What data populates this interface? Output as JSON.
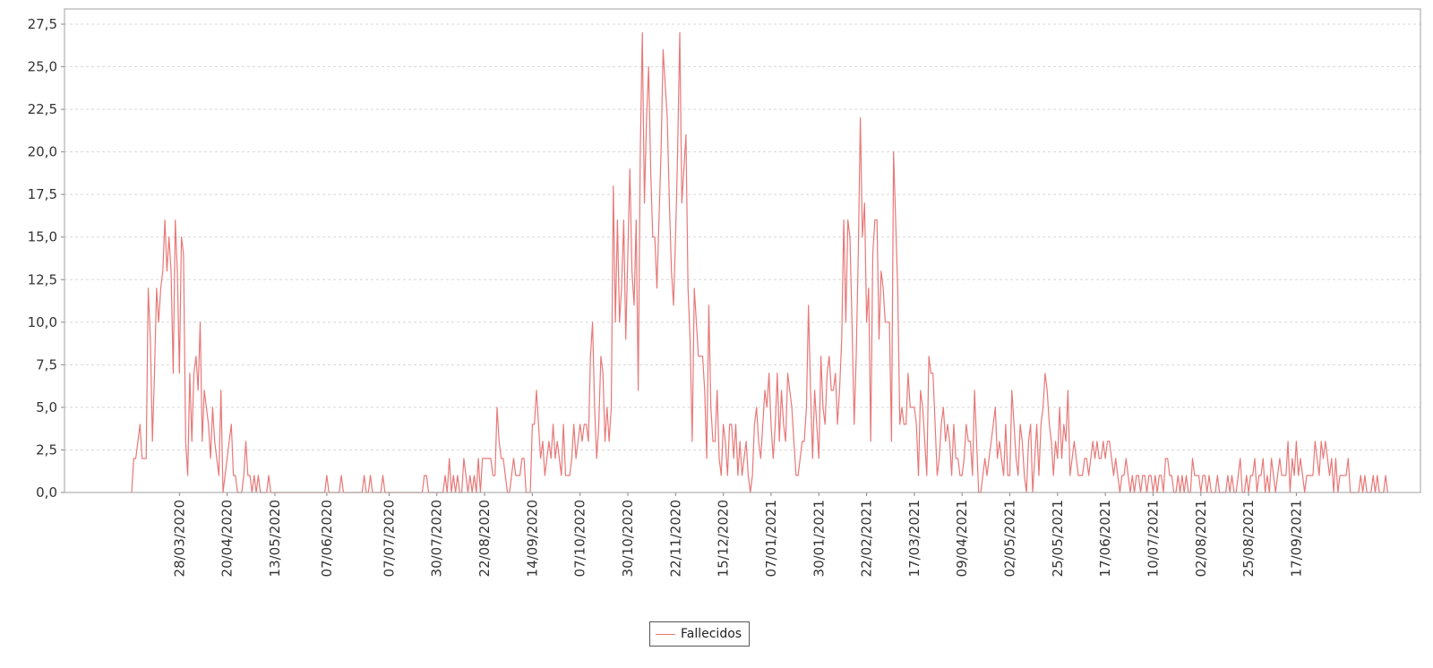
{
  "chart_data": {
    "type": "line",
    "title": "",
    "xlabel": "",
    "ylabel": "",
    "ylim": [
      0,
      27.5
    ],
    "yticks": [
      "0,0",
      "2,5",
      "5,0",
      "7,5",
      "10,0",
      "12,5",
      "15,0",
      "17,5",
      "20,0",
      "22,5",
      "25,0",
      "27,5"
    ],
    "ytick_values": [
      0,
      2.5,
      5,
      7.5,
      10,
      12.5,
      15,
      17.5,
      20,
      22.5,
      25,
      27.5
    ],
    "xtick_labels": [
      "28/03/2020",
      "20/04/2020",
      "13/05/2020",
      "07/06/2020",
      "07/07/2020",
      "30/07/2020",
      "22/08/2020",
      "14/09/2020",
      "07/10/2020",
      "30/10/2020",
      "22/11/2020",
      "15/12/2020",
      "07/01/2021",
      "30/01/2021",
      "22/02/2021",
      "17/03/2021",
      "09/04/2021",
      "02/05/2021",
      "25/05/2021",
      "17/06/2021",
      "10/07/2021",
      "02/08/2021",
      "25/08/2021",
      "17/09/2021"
    ],
    "xtick_days": [
      23,
      46,
      69,
      94,
      124,
      147,
      170,
      193,
      216,
      239,
      262,
      285,
      308,
      331,
      354,
      377,
      400,
      423,
      446,
      469,
      492,
      515,
      538,
      561
    ],
    "grid": {
      "horizontal": true,
      "vertical": false,
      "style": "dashed"
    },
    "legend": {
      "position": "bottom-center",
      "entries": [
        "Fallecidos"
      ]
    },
    "start_date": "05/03/2020",
    "series": [
      {
        "name": "Fallecidos",
        "color": "#e87878",
        "values": [
          0,
          2,
          2,
          3,
          4,
          2,
          2,
          2,
          12,
          9,
          3,
          7,
          12,
          10,
          12,
          13,
          16,
          13,
          15,
          13,
          7,
          16,
          13,
          7,
          15,
          14,
          3,
          1,
          7,
          3,
          7,
          8,
          6,
          10,
          3,
          6,
          5,
          4,
          2,
          5,
          3,
          2,
          1,
          6,
          0,
          1,
          2,
          3,
          4,
          1,
          1,
          0,
          0,
          0,
          1,
          3,
          1,
          1,
          0,
          1,
          0,
          1,
          0,
          0,
          0,
          0,
          1,
          0,
          0,
          0,
          0,
          0,
          0,
          0,
          0,
          0,
          0,
          0,
          0,
          0,
          0,
          0,
          0,
          0,
          0,
          0,
          0,
          0,
          0,
          0,
          0,
          0,
          0,
          0,
          1,
          0,
          0,
          0,
          0,
          0,
          0,
          1,
          0,
          0,
          0,
          0,
          0,
          0,
          0,
          0,
          0,
          0,
          1,
          0,
          0,
          1,
          0,
          0,
          0,
          0,
          0,
          1,
          0,
          0,
          0,
          0,
          0,
          0,
          0,
          0,
          0,
          0,
          0,
          0,
          0,
          0,
          0,
          0,
          0,
          0,
          0,
          1,
          1,
          0,
          0,
          0,
          0,
          0,
          0,
          0,
          0,
          1,
          0,
          2,
          0,
          1,
          0,
          1,
          0,
          0,
          2,
          1,
          0,
          1,
          0,
          1,
          0,
          2,
          0,
          2,
          2,
          2,
          2,
          2,
          1,
          1,
          5,
          3,
          2,
          2,
          1,
          0,
          0,
          1,
          2,
          1,
          1,
          1,
          2,
          2,
          0,
          0,
          0,
          4,
          4,
          6,
          4,
          2,
          3,
          1,
          2,
          3,
          2,
          4,
          2,
          3,
          2,
          1,
          4,
          1,
          1,
          1,
          2,
          4,
          2,
          3,
          4,
          3,
          4,
          4,
          3,
          8,
          10,
          5,
          2,
          4,
          8,
          7,
          3,
          5,
          3,
          5,
          18,
          10,
          16,
          10,
          12,
          16,
          9,
          14,
          19,
          13,
          11,
          16,
          6,
          20,
          27,
          17,
          22,
          25,
          19,
          15,
          15,
          12,
          16,
          20,
          26,
          24,
          22,
          17,
          13,
          11,
          15,
          20,
          27,
          17,
          19,
          21,
          12,
          9,
          3,
          12,
          10,
          8,
          8,
          8,
          6,
          2,
          11,
          5,
          3,
          3,
          6,
          2,
          1,
          4,
          3,
          1,
          4,
          4,
          2,
          4,
          1,
          3,
          1,
          2,
          3,
          1,
          0,
          1,
          4,
          5,
          3,
          2,
          4,
          6,
          5,
          7,
          4,
          2,
          4,
          7,
          3,
          6,
          4,
          3,
          7,
          6,
          5,
          3,
          1,
          1,
          2,
          3,
          3,
          5,
          11,
          6,
          2,
          6,
          4,
          2,
          8,
          5,
          4,
          7,
          8,
          6,
          6,
          7,
          4,
          6,
          9,
          16,
          10,
          16,
          15,
          10,
          4,
          8,
          14,
          22,
          15,
          17,
          10,
          12,
          3,
          14,
          16,
          16,
          9,
          13,
          12,
          10,
          10,
          10,
          3,
          20,
          16,
          12,
          4,
          5,
          4,
          4,
          7,
          5,
          5,
          5,
          4,
          1,
          6,
          5,
          3,
          1,
          8,
          7,
          7,
          4,
          1,
          2,
          4,
          5,
          3,
          4,
          3,
          1,
          4,
          2,
          2,
          1,
          1,
          2,
          4,
          3,
          3,
          1,
          6,
          3,
          0,
          0,
          1,
          2,
          1,
          2,
          3,
          4,
          5,
          2,
          3,
          2,
          1,
          4,
          1,
          1,
          6,
          4,
          2,
          1,
          4,
          3,
          1,
          0,
          3,
          4,
          0,
          2,
          4,
          1,
          4,
          5,
          7,
          6,
          4,
          3,
          1,
          3,
          2,
          5,
          2,
          4,
          3,
          6,
          1,
          2,
          3,
          2,
          1,
          1,
          1,
          2,
          2,
          1,
          2,
          3,
          2,
          3,
          2,
          2,
          3,
          2,
          3,
          3,
          2,
          1,
          2,
          1,
          0,
          1,
          1,
          2,
          1,
          0,
          1,
          0,
          1,
          1,
          0,
          1,
          1,
          0,
          1,
          1,
          0,
          1,
          0,
          1,
          1,
          0,
          2,
          2,
          1,
          1,
          0,
          0,
          1,
          0,
          1,
          0,
          1,
          0,
          0,
          2,
          1,
          1,
          1,
          0,
          1,
          1,
          0,
          1,
          0,
          0,
          0,
          1,
          0,
          0,
          0,
          0,
          1,
          0,
          1,
          0,
          0,
          1,
          2,
          0,
          0,
          1,
          0,
          1,
          1,
          2,
          0,
          1,
          1,
          2,
          0,
          1,
          0,
          2,
          1,
          0,
          1,
          2,
          1,
          1,
          1,
          3,
          0,
          2,
          1,
          3,
          1,
          2,
          1,
          0,
          1,
          1,
          1,
          1,
          3,
          2,
          1,
          3,
          2,
          3,
          2,
          1,
          2,
          0,
          2,
          0,
          1,
          1,
          1,
          1,
          2,
          0,
          0,
          0,
          0,
          0,
          1,
          0,
          1,
          0,
          0,
          0,
          1,
          0,
          1,
          0,
          0,
          0,
          1,
          0
        ]
      }
    ]
  }
}
